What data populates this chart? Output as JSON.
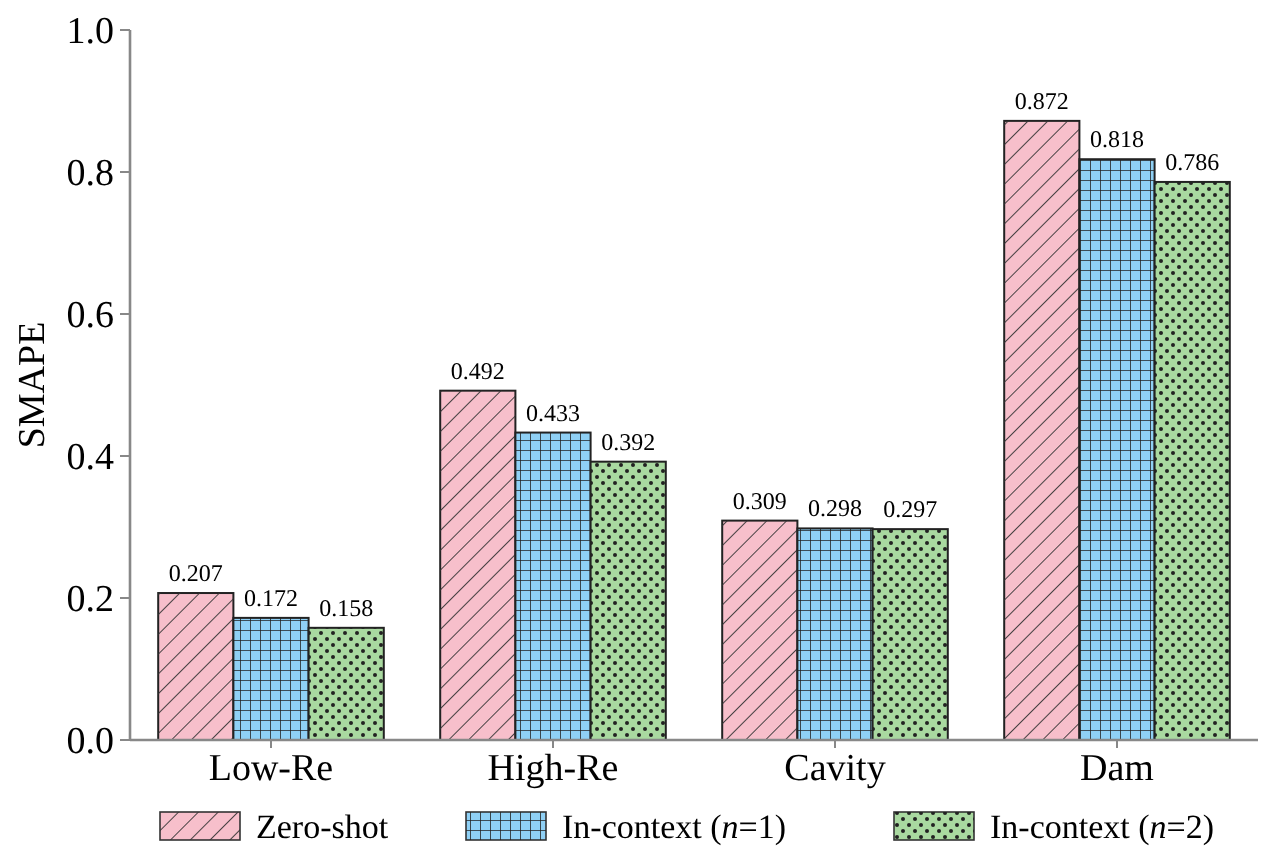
{
  "chart_data": {
    "type": "bar",
    "ylabel": "SMAPE",
    "categories": [
      "Low-Re",
      "High-Re",
      "Cavity",
      "Dam"
    ],
    "series": [
      {
        "name": "Zero-shot",
        "color": "#f7bfcb",
        "values": [
          0.207,
          0.492,
          0.309,
          0.872
        ]
      },
      {
        "name": "In-context (n=1)",
        "color": "#8fd0f5",
        "values": [
          0.172,
          0.433,
          0.298,
          0.818
        ]
      },
      {
        "name": "In-context (n=2)",
        "color": "#a9d9a0",
        "values": [
          0.158,
          0.392,
          0.297,
          0.786
        ]
      }
    ],
    "ylim": [
      0,
      1
    ],
    "yticks": [
      {
        "value": 0,
        "label": "0.0"
      },
      0.2,
      0.4,
      0.6,
      0.8,
      {
        "value": 1,
        "label": "1.0"
      }
    ],
    "data_labels": true,
    "legend": "bottom",
    "grid": false
  }
}
